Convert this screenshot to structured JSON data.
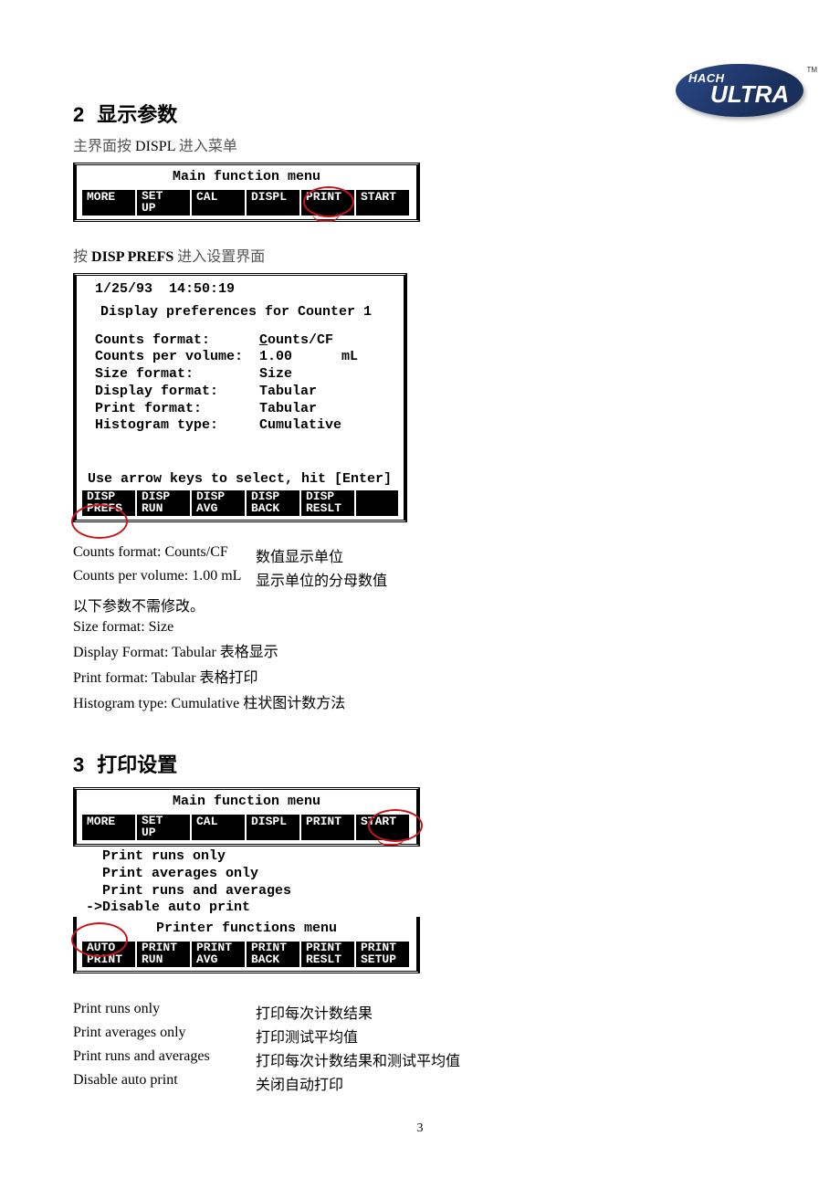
{
  "logo": {
    "brand_top": "HACH",
    "brand_main": "ULTRA",
    "tm": "TM"
  },
  "section2": {
    "num": "2",
    "title": "显示参数",
    "intro_prefix": "主界面按 ",
    "intro_btn": "DISPL",
    "intro_suffix": " 进入菜单",
    "menu_title": "Main function menu",
    "softkeys": [
      "MORE",
      "SET\nUP",
      "CAL",
      "DISPL",
      "PRINT",
      "START"
    ],
    "step2_prefix": "按 ",
    "step2_btn": "DISP PREFS",
    "step2_suffix": " 进入设置界面",
    "prefs": {
      "timestamp": "1/25/93  14:50:19",
      "title": "Display preferences for Counter 1",
      "rows": [
        {
          "label": "Counts format:",
          "val": "Counts/CF",
          "ul": "C"
        },
        {
          "label": "Counts per volume:",
          "val": "1.00      mL"
        },
        {
          "label": "Size format:",
          "val": "Size"
        },
        {
          "label": "Display format:",
          "val": "Tabular"
        },
        {
          "label": "Print format:",
          "val": "Tabular"
        },
        {
          "label": "Histogram type:",
          "val": "Cumulative"
        }
      ],
      "hint": "Use arrow keys to select, hit [Enter]",
      "softkeys": [
        "DISP\nPREFS",
        "DISP\nRUN",
        "DISP\nAVG",
        "DISP\nBACK",
        "DISP\nRESLT",
        ""
      ]
    },
    "explain": [
      {
        "l": "Counts format:  Counts/CF",
        "r": "数值显示单位"
      },
      {
        "l": "Counts per volume:  1.00  mL",
        "r": "显示单位的分母数值"
      }
    ],
    "explain_note": "以下参数不需修改。",
    "explain_rest": [
      "Size format:  Size",
      "Display Format: Tabular 表格显示",
      "Print format:  Tabular  表格打印",
      "Histogram type: Cumulative   柱状图计数方法"
    ]
  },
  "section3": {
    "num": "3",
    "title": "打印设置",
    "menu_title": "Main function menu",
    "softkeys": [
      "MORE",
      "SET\nUP",
      "CAL",
      "DISPL",
      "PRINT",
      "START"
    ],
    "print_options": [
      "  Print runs only",
      "  Print averages only",
      "  Print runs and averages",
      "->Disable auto print"
    ],
    "submenu_title": "Printer functions menu",
    "sub_softkeys": [
      "AUTO\nPRINT",
      "PRINT\nRUN",
      "PRINT\nAVG",
      "PRINT\nBACK",
      "PRINT\nRESLT",
      "PRINT\nSETUP"
    ],
    "table": [
      {
        "l": "Print runs only",
        "r": "打印每次计数结果"
      },
      {
        "l": "Print averages only",
        "r": "打印测试平均值"
      },
      {
        "l": "Print runs and averages",
        "r": "打印每次计数结果和测试平均值"
      },
      {
        "l": "Disable auto print",
        "r": "关闭自动打印"
      }
    ]
  },
  "page_number": "3"
}
